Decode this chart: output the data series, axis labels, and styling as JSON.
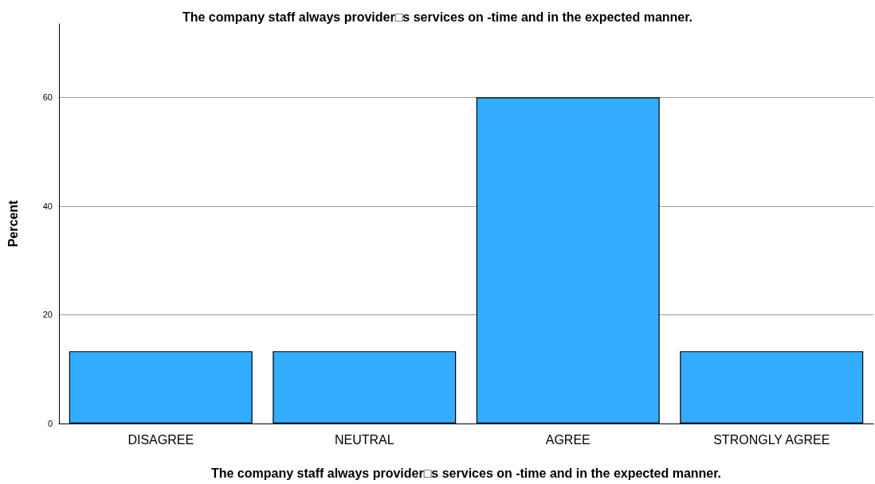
{
  "chart_data": {
    "type": "bar",
    "title": "The company staff always provider□s services on -time and in the expected manner.",
    "xlabel": "The company staff always provider□s services on -time and in the expected manner.",
    "ylabel": "Percent",
    "categories": [
      "DISAGREE",
      "NEUTRAL",
      "AGREE",
      "STRONGLY AGREE"
    ],
    "values": [
      13.3,
      13.3,
      60,
      13.3
    ],
    "color": "#33adff",
    "ylim": [
      0,
      73.5
    ],
    "yticks": [
      0,
      20,
      40,
      60
    ],
    "grid": "y"
  }
}
